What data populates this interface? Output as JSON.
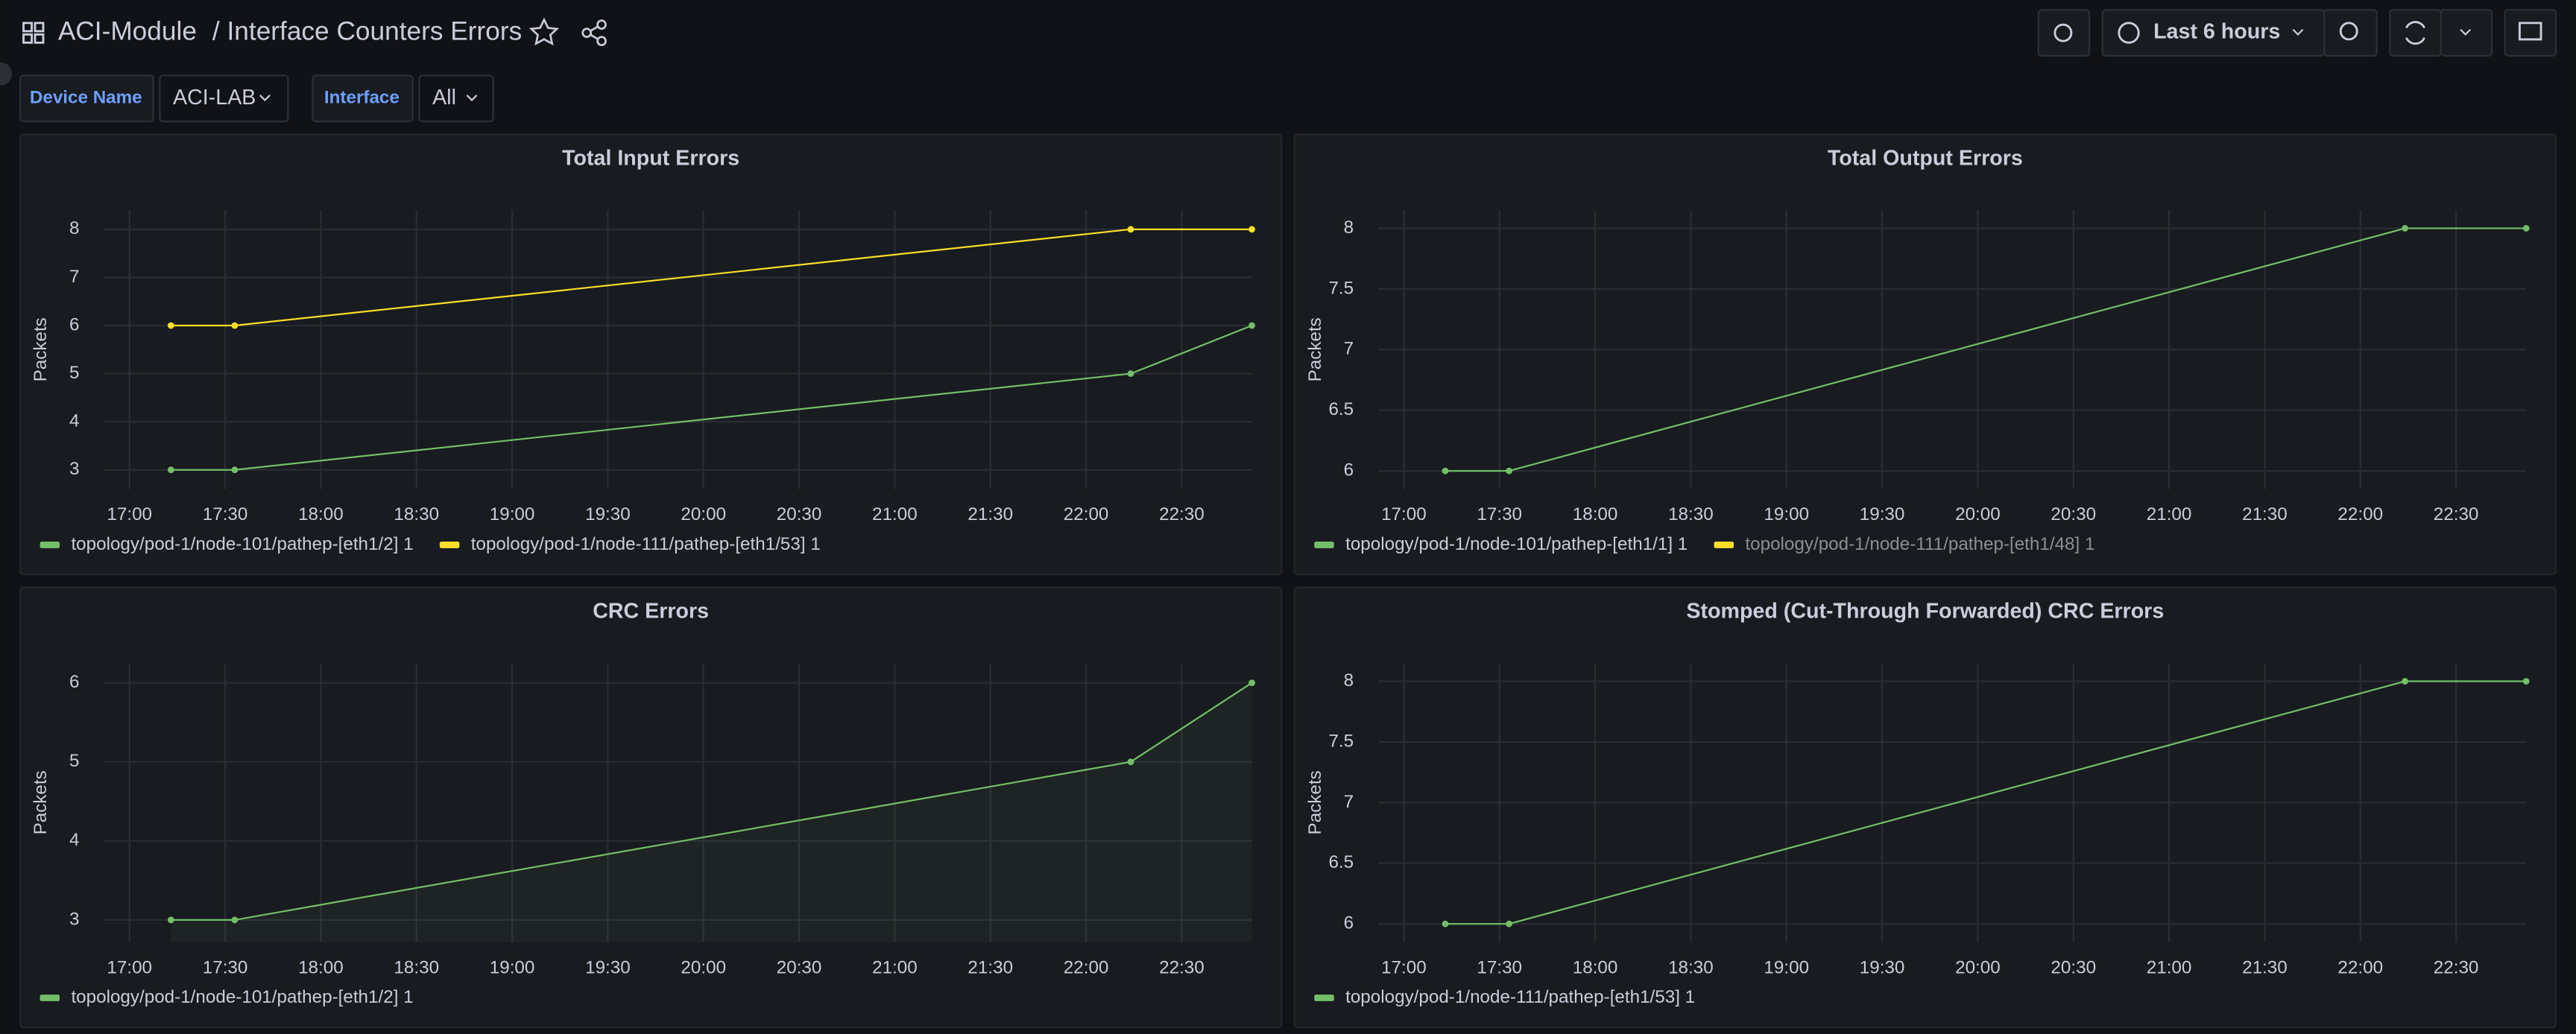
{
  "header": {
    "folder": "ACI-Module",
    "title": "/ Interface Counters Errors",
    "time_range": "Last 6 hours"
  },
  "variables": [
    {
      "label": "Device Name",
      "value": "ACI-LAB"
    },
    {
      "label": "Interface",
      "value": "All"
    }
  ],
  "chart_data": [
    {
      "type": "line",
      "title": "Total Input Errors",
      "y_label": "Packets",
      "x": [
        "17:13",
        "17:33",
        "22:14",
        "22:52"
      ],
      "xlim": [
        "16:52",
        "22:52"
      ],
      "xticks": [
        "17:00",
        "17:30",
        "18:00",
        "18:30",
        "19:00",
        "19:30",
        "20:00",
        "20:30",
        "21:00",
        "21:30",
        "22:00",
        "22:30"
      ],
      "ylim": [
        2.6,
        8.4
      ],
      "yticks": [
        3,
        4,
        5,
        6,
        7,
        8
      ],
      "grid": true,
      "series": [
        {
          "name": "topology/pod-1/node-101/pathep-[eth1/2] 1",
          "color": "#73bf69",
          "values": [
            3,
            3,
            5,
            6
          ]
        },
        {
          "name": "topology/pod-1/node-111/pathep-[eth1/53] 1",
          "color": "#fade2a",
          "values": [
            6,
            6,
            8,
            8
          ]
        }
      ]
    },
    {
      "type": "line",
      "title": "Total Output Errors",
      "y_label": "Packets",
      "x": [
        "17:13",
        "17:33",
        "22:14",
        "22:52"
      ],
      "xlim": [
        "16:52",
        "22:52"
      ],
      "xticks": [
        "17:00",
        "17:30",
        "18:00",
        "18:30",
        "19:00",
        "19:30",
        "20:00",
        "20:30",
        "21:00",
        "21:30",
        "22:00",
        "22:30"
      ],
      "ylim": [
        5.85,
        8.15
      ],
      "yticks": [
        6,
        6.5,
        7,
        7.5,
        8
      ],
      "grid": true,
      "series": [
        {
          "name": "topology/pod-1/node-101/pathep-[eth1/1] 1",
          "color": "#73bf69",
          "values": [
            6,
            6,
            8,
            8
          ]
        },
        {
          "name": "topology/pod-1/node-111/pathep-[eth1/48] 1",
          "color": "#fade2a",
          "hidden": true,
          "values": [
            null,
            null,
            null,
            null
          ]
        }
      ]
    },
    {
      "type": "area",
      "title": "CRC Errors",
      "y_label": "Packets",
      "x": [
        "17:13",
        "17:33",
        "22:14",
        "22:52"
      ],
      "xlim": [
        "16:52",
        "22:52"
      ],
      "xticks": [
        "17:00",
        "17:30",
        "18:00",
        "18:30",
        "19:00",
        "19:30",
        "20:00",
        "20:30",
        "21:00",
        "21:30",
        "22:00",
        "22:30"
      ],
      "ylim": [
        2.72,
        6.25
      ],
      "yticks": [
        3,
        4,
        5,
        6
      ],
      "grid": true,
      "series": [
        {
          "name": "topology/pod-1/node-101/pathep-[eth1/2] 1",
          "color": "#73bf69",
          "values": [
            3,
            3,
            5,
            6
          ]
        }
      ]
    },
    {
      "type": "line",
      "title": "Stomped (Cut-Through Forwarded) CRC Errors",
      "y_label": "Packets",
      "x": [
        "17:13",
        "17:33",
        "22:14",
        "22:52"
      ],
      "xlim": [
        "16:52",
        "22:52"
      ],
      "xticks": [
        "17:00",
        "17:30",
        "18:00",
        "18:30",
        "19:00",
        "19:30",
        "20:00",
        "20:30",
        "21:00",
        "21:30",
        "22:00",
        "22:30"
      ],
      "ylim": [
        5.85,
        8.15
      ],
      "yticks": [
        6,
        6.5,
        7,
        7.5,
        8
      ],
      "grid": true,
      "series": [
        {
          "name": "topology/pod-1/node-111/pathep-[eth1/53] 1",
          "color": "#73bf69",
          "values": [
            6,
            6,
            8,
            8
          ]
        }
      ]
    }
  ]
}
